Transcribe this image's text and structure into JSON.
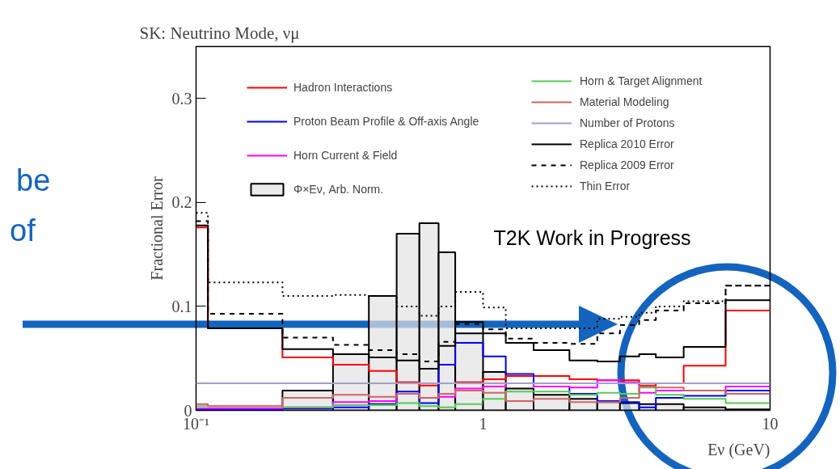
{
  "chart_data": {
    "type": "histogram",
    "title": "SK: Neutrino Mode, νμ",
    "xlabel": "Eν (GeV)",
    "ylabel": "Fractional Error",
    "annotations": [
      "T2K Work in Progress",
      "be",
      "of"
    ],
    "bins": [
      0.2,
      0.3,
      0.4,
      0.5,
      0.6,
      0.7,
      0.8,
      1.0,
      1.2,
      1.5,
      2.0,
      2.5,
      3.0,
      3.5,
      4.0,
      5.0,
      7.0,
      10.0
    ],
    "series": [
      {
        "name": "Hadron Interactions",
        "type": "step",
        "color": "#ff0000",
        "line_style": "solid",
        "x": [
          0.1,
          0.11,
          0.2,
          0.3,
          0.4,
          0.5,
          0.6,
          0.7,
          0.8,
          1.0,
          1.2,
          1.5,
          2.0,
          2.5,
          3.0,
          3.5,
          4.0,
          5.0,
          7.0,
          10.0
        ],
        "values": [
          0.176,
          0.079,
          0.051,
          0.044,
          0.038,
          0.027,
          0.024,
          0.026,
          0.027,
          0.03,
          0.033,
          0.033,
          0.03,
          0.029,
          0.029,
          0.024,
          0.026,
          0.043,
          0.096,
          0.096
        ]
      },
      {
        "name": "Proton Beam Profile & Off-axis Angle",
        "type": "step",
        "color": "#0000ff",
        "line_style": "solid",
        "x": [
          0.1,
          0.11,
          0.2,
          0.3,
          0.4,
          0.5,
          0.6,
          0.7,
          0.8,
          1.0,
          1.2,
          1.5,
          2.0,
          2.5,
          3.0,
          3.5,
          4.0,
          5.0,
          7.0,
          10.0
        ],
        "values": [
          0.001,
          0.001,
          0.002,
          0.003,
          0.006,
          0.018,
          0.007,
          0.044,
          0.065,
          0.052,
          0.035,
          0.023,
          0.016,
          0.009,
          0.008,
          0.003,
          0.012,
          0.014,
          0.019,
          0.019
        ]
      },
      {
        "name": "Horn Current & Field",
        "type": "step",
        "color": "#ff00ff",
        "line_style": "solid",
        "x": [
          0.1,
          0.11,
          0.2,
          0.3,
          0.4,
          0.5,
          0.6,
          0.7,
          0.8,
          1.0,
          1.2,
          1.5,
          2.0,
          2.5,
          3.0,
          3.5,
          4.0,
          5.0,
          7.0,
          10.0
        ],
        "values": [
          0.002,
          0.002,
          0.003,
          0.008,
          0.009,
          0.016,
          0.012,
          0.013,
          0.021,
          0.023,
          0.026,
          0.023,
          0.022,
          0.029,
          0.027,
          0.017,
          0.019,
          0.019,
          0.023,
          0.023
        ]
      },
      {
        "name": "Φ×Eν, Arb. Norm.",
        "color": "#e3e3e3",
        "values": [
          0.019,
          0.054,
          0.11,
          0.17,
          0.18,
          0.152,
          0.074,
          0.037,
          0.021,
          0.015,
          0.011,
          0.008,
          0.007,
          0.006,
          0.006,
          0.003,
          0.001
        ]
      },
      {
        "name": "Horn & Target Alignment",
        "type": "step",
        "color": "#55cc55",
        "line_style": "solid",
        "x": [
          0.1,
          0.11,
          0.2,
          0.3,
          0.4,
          0.5,
          0.6,
          0.7,
          0.8,
          1.0,
          1.2,
          1.5,
          2.0,
          2.5,
          3.0,
          3.5,
          4.0,
          5.0,
          7.0,
          10.0
        ],
        "values": [
          0.004,
          0.004,
          0.003,
          0.005,
          0.005,
          0.007,
          0.004,
          0.003,
          0.006,
          0.011,
          0.018,
          0.018,
          0.015,
          0.017,
          0.016,
          0.022,
          0.015,
          0.011,
          0.007,
          0.007
        ]
      },
      {
        "name": "Material Modeling",
        "type": "step",
        "color": "#d06464",
        "line_style": "solid",
        "x": [
          0.1,
          0.11,
          0.2,
          0.3,
          0.4,
          0.5,
          0.6,
          0.7,
          0.8,
          1.0,
          1.2,
          1.5,
          2.0,
          2.5,
          3.0,
          3.5,
          4.0,
          5.0,
          7.0,
          10.0
        ],
        "values": [
          0.006,
          0.004,
          0.012,
          0.015,
          0.013,
          0.016,
          0.012,
          0.016,
          0.019,
          0.017,
          0.009,
          0.011,
          0.008,
          0.008,
          0.012,
          0.023,
          0.022,
          0.019,
          0.016,
          0.016
        ]
      },
      {
        "name": "Number of Protons",
        "type": "step",
        "color": "#a4a0c8",
        "line_style": "solid",
        "x": [
          0.1,
          0.11,
          0.2,
          0.3,
          0.4,
          0.5,
          0.6,
          0.7,
          0.8,
          1.0,
          1.2,
          1.5,
          2.0,
          2.5,
          3.0,
          3.5,
          4.0,
          5.0,
          7.0,
          10.0
        ],
        "values": [
          0.026,
          0.026,
          0.026,
          0.026,
          0.026,
          0.026,
          0.026,
          0.026,
          0.026,
          0.026,
          0.026,
          0.026,
          0.026,
          0.026,
          0.026,
          0.026,
          0.026,
          0.026,
          0.026,
          0.026
        ]
      },
      {
        "name": "Replica 2010 Error",
        "type": "step",
        "color": "#000000",
        "line_style": "solid",
        "x": [
          0.1,
          0.11,
          0.2,
          0.3,
          0.4,
          0.5,
          0.6,
          0.7,
          0.8,
          1.0,
          1.2,
          1.5,
          2.0,
          2.5,
          3.0,
          3.5,
          4.0,
          5.0,
          7.0,
          10.0
        ],
        "values": [
          0.178,
          0.079,
          0.059,
          0.054,
          0.051,
          0.048,
          0.04,
          0.062,
          0.085,
          0.074,
          0.065,
          0.058,
          0.048,
          0.047,
          0.052,
          0.054,
          0.051,
          0.061,
          0.106,
          0.106
        ]
      },
      {
        "name": "Replica 2009 Error",
        "type": "step",
        "color": "#000000",
        "line_style": "dashed",
        "x": [
          0.1,
          0.11,
          0.2,
          0.3,
          0.4,
          0.5,
          0.6,
          0.7,
          0.8,
          1.0,
          1.2,
          1.5,
          2.0,
          2.5,
          3.0,
          3.5,
          4.0,
          5.0,
          7.0,
          10.0
        ],
        "values": [
          0.182,
          0.093,
          0.07,
          0.063,
          0.058,
          0.054,
          0.047,
          0.066,
          0.083,
          0.078,
          0.069,
          0.065,
          0.064,
          0.074,
          0.082,
          0.087,
          0.096,
          0.103,
          0.12,
          0.12
        ]
      },
      {
        "name": "Thin Error",
        "type": "step",
        "color": "#000000",
        "line_style": "dotted",
        "x": [
          0.1,
          0.11,
          0.2,
          0.3,
          0.4,
          0.5,
          0.6,
          0.7,
          0.8,
          1.0,
          1.2,
          1.5,
          2.0,
          2.5,
          3.0,
          3.5,
          4.0,
          5.0,
          7.0,
          10.0
        ],
        "values": [
          0.19,
          0.123,
          0.11,
          0.111,
          0.11,
          0.1,
          0.091,
          0.1,
          0.114,
          0.099,
          0.079,
          0.079,
          0.079,
          0.088,
          0.09,
          0.094,
          0.1,
          0.105,
          0.12,
          0.12
        ]
      }
    ],
    "log": "x",
    "xlim": [
      0.1,
      10
    ],
    "xticks": [
      {
        "value": 0.1,
        "label": "10⁻¹"
      },
      1,
      10
    ],
    "ylim": [
      0,
      0.35
    ],
    "yticks": [
      0,
      0.1,
      0.2,
      0.3
    ],
    "legend": "top"
  }
}
